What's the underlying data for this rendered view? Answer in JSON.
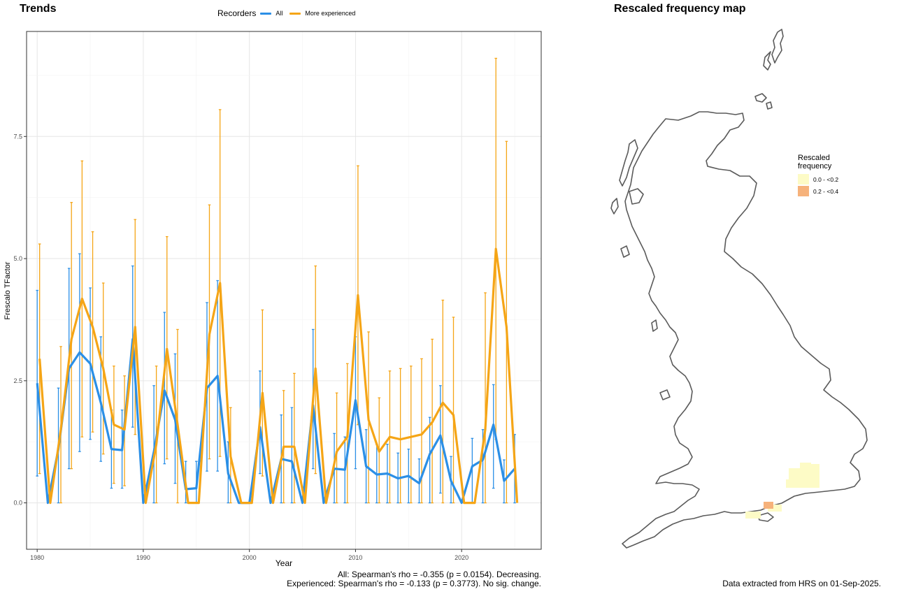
{
  "titles": {
    "trends": "Trends",
    "map": "Rescaled frequency map"
  },
  "legend": {
    "title": "Recorders",
    "items": [
      {
        "label": "All",
        "color": "#2b8fe6"
      },
      {
        "label": "More experienced",
        "color": "#f5a516"
      }
    ]
  },
  "stats": {
    "all": "All: Spearman's rho = -0.355 (p = 0.0154). Decreasing.",
    "experienced": "Experienced: Spearman's rho = -0.133 (p = 0.3773). No sig. change."
  },
  "data_note": "Data extracted from HRS on 01-Sep-2025.",
  "map_legend": {
    "title": "Rescaled frequency",
    "items": [
      {
        "label": "0.0 - <0.2",
        "color": "#fdfbc6"
      },
      {
        "label": "0.2 - <0.4",
        "color": "#f6b27b"
      }
    ]
  },
  "chart_data": {
    "type": "line",
    "xlabel": "Year",
    "ylabel": "Frescalo TFactor",
    "xlim": [
      1979,
      2027.5
    ],
    "ylim": [
      -0.95,
      9.65
    ],
    "x_ticks": [
      1980,
      1990,
      2000,
      2010,
      2020
    ],
    "y_ticks": [
      0.0,
      2.5,
      5.0,
      7.5
    ],
    "y_tick_labels": [
      "0.0",
      "2.5",
      "5.0",
      "7.5"
    ],
    "grid": true,
    "error_bars": true,
    "x": [
      1980,
      1981,
      1982,
      1983,
      1984,
      1985,
      1986,
      1987,
      1988,
      1989,
      1990,
      1991,
      1992,
      1993,
      1994,
      1995,
      1996,
      1997,
      1998,
      1999,
      2000,
      2001,
      2002,
      2003,
      2004,
      2005,
      2006,
      2007,
      2008,
      2009,
      2010,
      2011,
      2012,
      2013,
      2014,
      2015,
      2016,
      2017,
      2018,
      2019,
      2020,
      2021,
      2022,
      2023,
      2024,
      2025
    ],
    "series": [
      {
        "name": "All",
        "color": "#2b8fe6",
        "values": [
          2.45,
          0.0,
          1.1,
          2.75,
          3.08,
          2.85,
          2.05,
          1.1,
          1.08,
          3.35,
          0.0,
          1.05,
          2.3,
          1.7,
          0.28,
          0.3,
          2.35,
          2.6,
          0.6,
          0.0,
          0.0,
          1.55,
          0.0,
          0.9,
          0.85,
          0.0,
          2.0,
          0.0,
          0.7,
          0.68,
          2.1,
          0.75,
          0.58,
          0.6,
          0.5,
          0.55,
          0.4,
          1.0,
          1.38,
          0.45,
          0.0,
          0.75,
          0.88,
          1.6,
          0.45,
          0.7
        ],
        "lower": [
          0.55,
          0.0,
          0.0,
          0.7,
          1.05,
          1.3,
          0.85,
          0.3,
          0.3,
          1.55,
          0.0,
          0.0,
          0.8,
          0.4,
          0.0,
          0.0,
          0.65,
          0.65,
          0.0,
          0.0,
          0.0,
          0.6,
          0.0,
          0.0,
          0.0,
          0.0,
          0.7,
          0.0,
          0.0,
          0.0,
          0.7,
          0.0,
          0.0,
          0.0,
          0.0,
          0.0,
          0.0,
          0.0,
          0.2,
          0.0,
          0.0,
          0.0,
          0.0,
          0.3,
          0.0,
          0.0
        ],
        "upper": [
          4.35,
          0.0,
          2.35,
          4.8,
          5.1,
          4.4,
          3.4,
          1.9,
          1.9,
          4.85,
          0.0,
          2.4,
          3.9,
          3.05,
          0.85,
          0.85,
          4.1,
          4.55,
          1.25,
          0.0,
          0.0,
          2.7,
          0.0,
          1.8,
          1.95,
          0.0,
          3.55,
          0.0,
          1.42,
          1.35,
          3.4,
          1.5,
          1.2,
          1.2,
          1.02,
          1.1,
          0.9,
          1.75,
          2.4,
          0.95,
          0.0,
          1.32,
          1.5,
          2.42,
          0.88,
          1.4
        ]
      },
      {
        "name": "More experienced",
        "color": "#f5a516",
        "values": [
          2.95,
          0.0,
          1.5,
          3.35,
          4.18,
          3.6,
          2.75,
          1.6,
          1.5,
          3.6,
          0.0,
          1.2,
          3.15,
          1.6,
          0.0,
          0.0,
          3.45,
          4.5,
          0.95,
          0.0,
          0.0,
          2.25,
          0.0,
          1.15,
          1.15,
          0.0,
          2.75,
          0.0,
          1.05,
          1.35,
          4.25,
          1.7,
          1.05,
          1.35,
          1.3,
          1.35,
          1.4,
          1.65,
          2.05,
          1.8,
          0.0,
          0.0,
          1.5,
          5.2,
          3.6,
          0.0
        ],
        "lower": [
          0.6,
          0.0,
          0.0,
          0.7,
          1.35,
          1.45,
          1.0,
          0.4,
          0.35,
          1.4,
          0.0,
          0.0,
          0.9,
          0.0,
          0.0,
          0.0,
          0.9,
          0.95,
          0.0,
          0.0,
          0.0,
          0.55,
          0.0,
          0.0,
          0.0,
          0.0,
          0.6,
          0.0,
          0.0,
          0.0,
          1.6,
          0.0,
          0.0,
          0.0,
          0.0,
          0.0,
          0.0,
          0.0,
          0.0,
          0.0,
          0.0,
          0.0,
          0.0,
          1.3,
          0.0,
          0.0
        ],
        "upper": [
          5.3,
          0.0,
          3.2,
          6.15,
          7.0,
          5.55,
          4.5,
          2.8,
          2.6,
          5.8,
          0.0,
          2.8,
          5.45,
          3.55,
          0.0,
          0.0,
          6.1,
          8.05,
          1.95,
          0.0,
          0.0,
          3.95,
          0.0,
          2.3,
          2.65,
          0.0,
          4.85,
          0.0,
          2.25,
          2.85,
          6.9,
          3.5,
          2.15,
          2.7,
          2.75,
          2.8,
          2.95,
          3.35,
          4.15,
          3.8,
          0.0,
          0.0,
          4.3,
          9.1,
          7.4,
          0.0
        ]
      }
    ]
  }
}
